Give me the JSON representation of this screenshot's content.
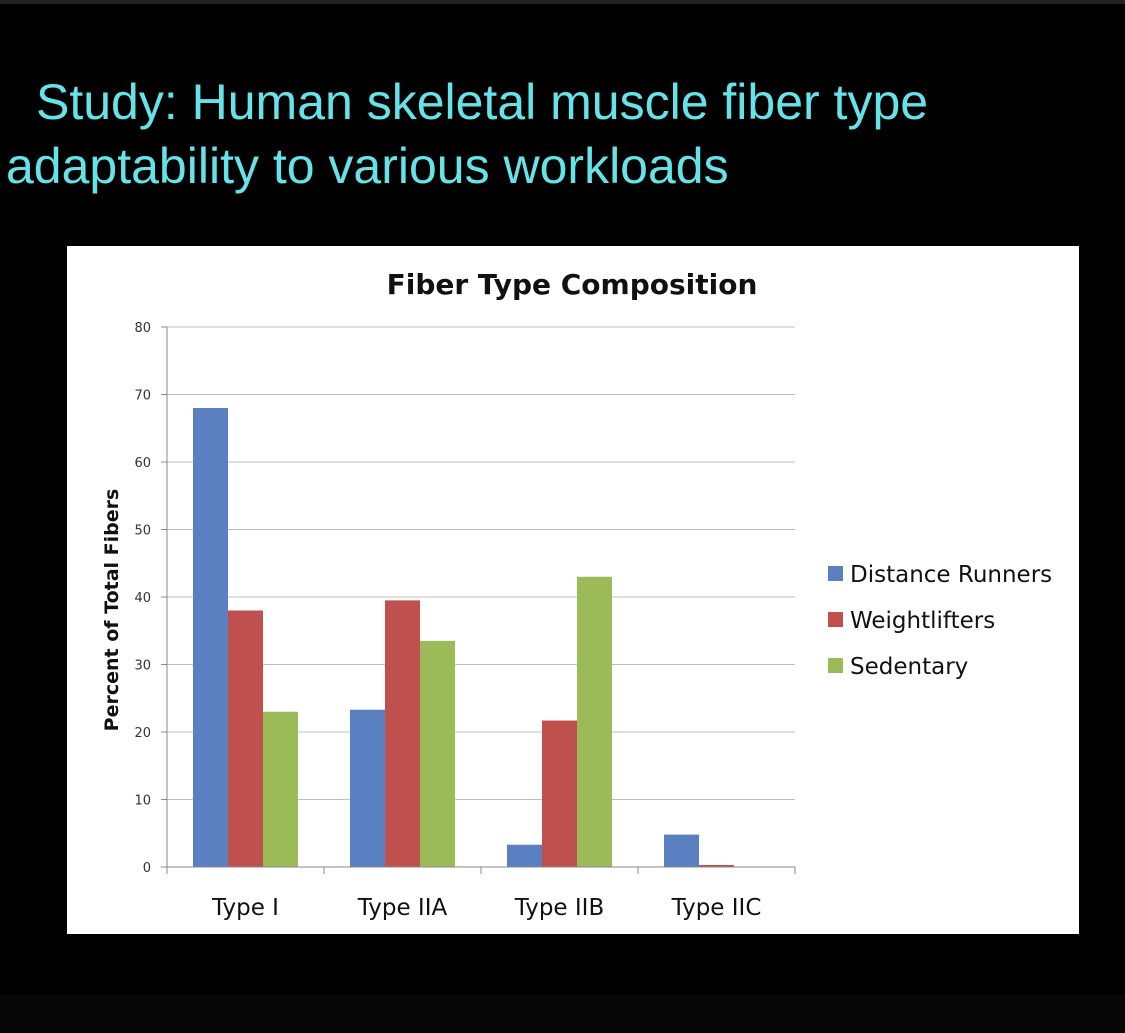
{
  "slide": {
    "title_line1": "Study: Human skeletal muscle fiber type",
    "title_line2": "adaptability to various workloads"
  },
  "chart_data": {
    "type": "bar",
    "title": "Fiber Type Composition",
    "xlabel": "",
    "ylabel": "Percent of Total Fibers",
    "ylim": [
      0,
      80
    ],
    "yticks": [
      0,
      10,
      20,
      30,
      40,
      50,
      60,
      70,
      80
    ],
    "categories": [
      "Type I",
      "Type IIA",
      "Type IIB",
      "Type IIC"
    ],
    "series": [
      {
        "name": "Distance Runners",
        "color": "#5B80C2",
        "values": [
          68,
          23.3,
          3.3,
          4.8
        ]
      },
      {
        "name": "Weightlifters",
        "color": "#C0504D",
        "values": [
          38,
          39.5,
          21.7,
          0.3
        ]
      },
      {
        "name": "Sedentary",
        "color": "#9BBB59",
        "values": [
          23,
          33.5,
          43,
          0
        ]
      }
    ],
    "grid": true,
    "legend": "right"
  }
}
